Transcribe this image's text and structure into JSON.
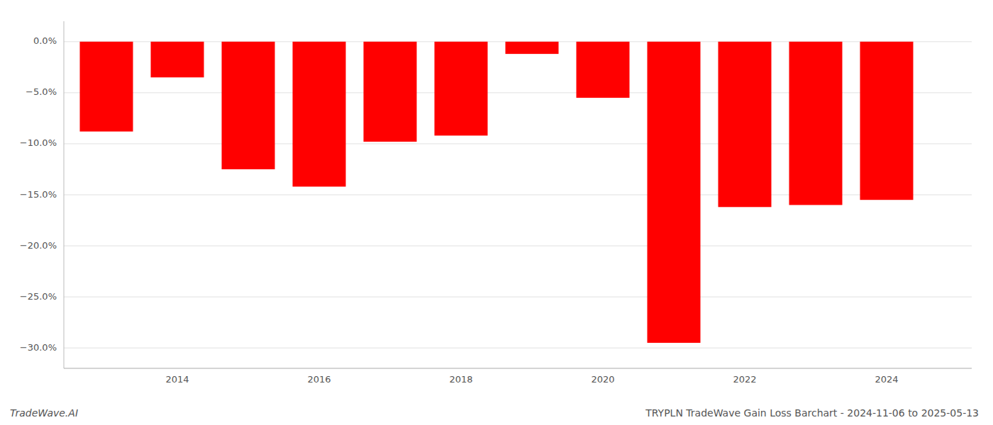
{
  "chart_data": {
    "type": "bar",
    "title": "TRYPLN TradeWave Gain Loss Barchart - 2024-11-06 to 2025-05-13",
    "annotations": [
      "TradeWave.AI"
    ],
    "x": [
      2013,
      2014,
      2015,
      2016,
      2017,
      2018,
      2019,
      2020,
      2021,
      2022,
      2023,
      2024
    ],
    "values": [
      -8.8,
      -3.5,
      -12.5,
      -14.2,
      -9.8,
      -9.2,
      -1.2,
      -5.5,
      -29.5,
      -16.2,
      -16.0,
      -15.5
    ],
    "color": "#ff0000",
    "xlim": [
      2012.4,
      2025.2
    ],
    "xticks": [
      2014,
      2016,
      2018,
      2020,
      2022,
      2024
    ],
    "ylim": [
      -32,
      2
    ],
    "yticks": [
      {
        "value": 0.0,
        "label": "0.0%"
      },
      {
        "value": -5.0,
        "label": "−5.0%"
      },
      {
        "value": -10.0,
        "label": "−10.0%"
      },
      {
        "value": -15.0,
        "label": "−15.0%"
      },
      {
        "value": -20.0,
        "label": "−20.0%"
      },
      {
        "value": -25.0,
        "label": "−25.0%"
      },
      {
        "value": -30.0,
        "label": "−30.0%"
      }
    ],
    "grid": true
  }
}
